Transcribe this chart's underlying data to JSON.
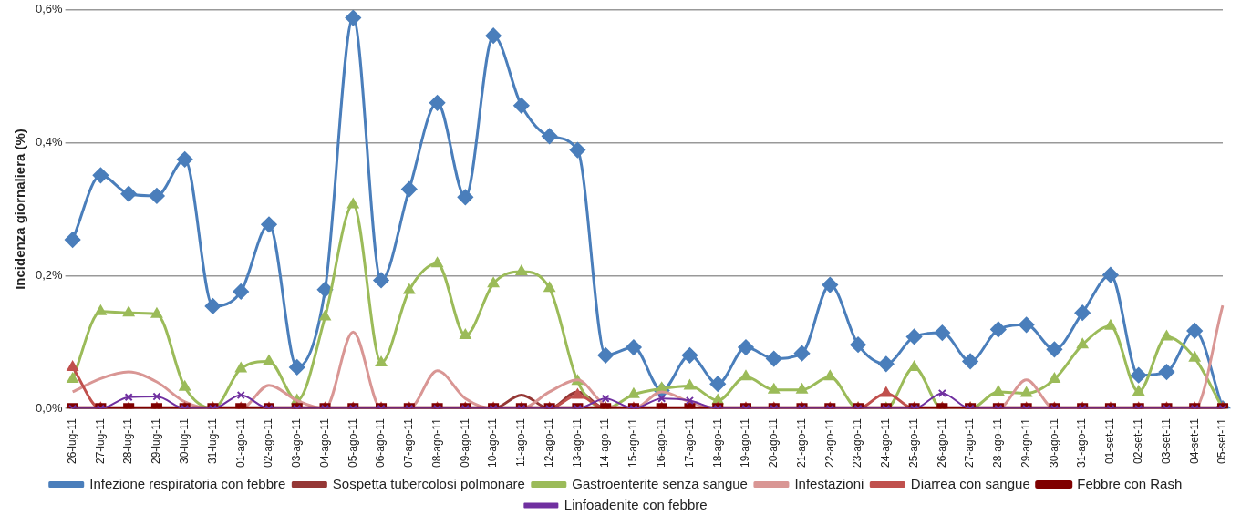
{
  "chart_data": {
    "type": "line",
    "ylabel": "Incidenza giornaliera (%)",
    "categories": [
      "26-lug-11",
      "27-lug-11",
      "28-lug-11",
      "29-lug-11",
      "30-lug-11",
      "31-lug-11",
      "01-ago-11",
      "02-ago-11",
      "03-ago-11",
      "04-ago-11",
      "05-ago-11",
      "06-ago-11",
      "07-ago-11",
      "08-ago-11",
      "09-ago-11",
      "10-ago-11",
      "11-ago-11",
      "12-ago-11",
      "13-ago-11",
      "14-ago-11",
      "15-ago-11",
      "16-ago-11",
      "17-ago-11",
      "18-ago-11",
      "19-ago-11",
      "20-ago-11",
      "21-ago-11",
      "22-ago-11",
      "23-ago-11",
      "24-ago-11",
      "25-ago-11",
      "26-ago-11",
      "27-ago-11",
      "28-ago-11",
      "29-ago-11",
      "30-ago-11",
      "31-ago-11",
      "01-set-11",
      "02-set-11",
      "03-set-11",
      "04-set-11",
      "05-set-11"
    ],
    "series": [
      {
        "name": "Infezione respiratoria con febbre",
        "color": "#4a7ebb",
        "marker": "diamond",
        "values": [
          0.254,
          0.351,
          0.323,
          0.32,
          0.375,
          0.154,
          0.176,
          0.277,
          0.062,
          0.179,
          0.588,
          0.193,
          0.33,
          0.46,
          0.318,
          0.561,
          0.456,
          0.41,
          0.389,
          0.08,
          0.092,
          0.027,
          0.08,
          0.037,
          0.092,
          0.075,
          0.083,
          0.186,
          0.096,
          0.067,
          0.108,
          0.114,
          0.071,
          0.119,
          0.126,
          0.089,
          0.144,
          0.201,
          0.05,
          0.055,
          0.117,
          0
        ]
      },
      {
        "name": "Sospetta tubercolosi polmonare",
        "color": "#953735",
        "marker": "none",
        "values": [
          0,
          0,
          0,
          0,
          0,
          0,
          0,
          0,
          0,
          0,
          0,
          0,
          0,
          0,
          0,
          0,
          0.02,
          0,
          0.025,
          0,
          0,
          0,
          0,
          0,
          0,
          0,
          0,
          0,
          0,
          0,
          0,
          0,
          0,
          0,
          0,
          0,
          0,
          0,
          0,
          0,
          0,
          0
        ]
      },
      {
        "name": "Gastroenterite senza sangue",
        "color": "#9bbb59",
        "marker": "triangle",
        "values": [
          0.044,
          0.146,
          0.144,
          0.142,
          0.032,
          0,
          0.06,
          0.071,
          0.012,
          0.138,
          0.307,
          0.069,
          0.178,
          0.218,
          0.11,
          0.188,
          0.206,
          0.181,
          0.041,
          0,
          0.021,
          0.03,
          0.034,
          0.012,
          0.048,
          0.028,
          0.028,
          0.048,
          0,
          0,
          0.062,
          0,
          0,
          0.025,
          0.023,
          0.044,
          0.096,
          0.124,
          0.025,
          0.108,
          0.076,
          0
        ]
      },
      {
        "name": "Infestazioni",
        "color": "#d99694",
        "marker": "none",
        "values": [
          0.025,
          0.045,
          0.055,
          0.04,
          0.01,
          0,
          0,
          0.035,
          0.012,
          0,
          0.115,
          0,
          0,
          0.057,
          0.015,
          0,
          0,
          0.025,
          0.043,
          0.005,
          0,
          0.025,
          0.01,
          0,
          0,
          0,
          0,
          0,
          0,
          0,
          0,
          0,
          0,
          0,
          0.043,
          0,
          0,
          0,
          0,
          0,
          0,
          0.155
        ]
      },
      {
        "name": "Diarrea con sangue",
        "color": "#c0504d",
        "marker": "triangle",
        "values": [
          0.062,
          0,
          0,
          0,
          0,
          0,
          0,
          0,
          0,
          0,
          0,
          0,
          0,
          0,
          0,
          0,
          0,
          0,
          0.02,
          0,
          0,
          0,
          0,
          0,
          0,
          0,
          0,
          0,
          0,
          0.023,
          0,
          0,
          0,
          0,
          0,
          0,
          0,
          0,
          0,
          0,
          0,
          0
        ]
      },
      {
        "name": "Febbre con Rash",
        "color": "#7f0000",
        "marker": "square",
        "values": [
          0,
          0,
          0,
          0,
          0,
          0,
          0,
          0,
          0,
          0,
          0,
          0,
          0,
          0,
          0,
          0,
          0,
          0,
          0,
          0,
          0,
          0,
          0,
          0,
          0,
          0,
          0,
          0,
          0,
          0,
          0,
          0,
          0,
          0,
          0,
          0,
          0,
          0,
          0,
          0,
          0,
          0
        ]
      },
      {
        "name": "Linfoadenite con febbre",
        "color": "#7030a0",
        "marker": "cross",
        "values": [
          0,
          0,
          0.017,
          0.018,
          0,
          0,
          0.02,
          0,
          0,
          0,
          0,
          0,
          0,
          0,
          0,
          0,
          0,
          0,
          0,
          0.015,
          0,
          0.015,
          0.012,
          0,
          0,
          0,
          0,
          0,
          0,
          0,
          0,
          0.023,
          0,
          0,
          0,
          0,
          0,
          0,
          0,
          0,
          0,
          0
        ]
      }
    ],
    "ylim": [
      0,
      0.6
    ],
    "yticks": [
      {
        "value": 0,
        "label": "0,0%"
      },
      {
        "value": 0.2,
        "label": "0,2%"
      },
      {
        "value": 0.4,
        "label": "0,4%"
      },
      {
        "value": 0.6,
        "label": "0,6%"
      }
    ],
    "grid": "y",
    "legend": "bottom"
  }
}
